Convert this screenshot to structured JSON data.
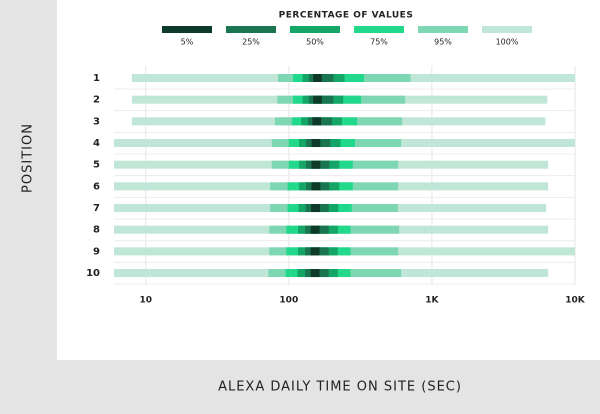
{
  "chart_data": {
    "type": "range-bar",
    "legend_title": "PERCENTAGE OF VALUES",
    "y_label": "POSITION",
    "x_label": "ALEXA DAILY TIME ON SITE (SEC)",
    "categories": [
      "1",
      "2",
      "3",
      "4",
      "5",
      "6",
      "7",
      "8",
      "9",
      "10"
    ],
    "xscale": "log",
    "xlim": [
      6,
      10000
    ],
    "xticks": [
      10,
      100,
      {
        "value": 1000,
        "label": "1K"
      },
      {
        "value": 10000,
        "label": "10K"
      }
    ],
    "grid": true,
    "series": [
      {
        "name": "100%",
        "color": "#bfe6d6",
        "low": [
          8,
          8,
          8,
          6,
          6,
          6,
          6,
          6,
          6,
          6
        ],
        "high": [
          10000,
          6400,
          6200,
          10000,
          6500,
          6500,
          6300,
          6500,
          10000,
          6500
        ]
      },
      {
        "name": "95%",
        "color": "#7fd6b2",
        "low": [
          84,
          83,
          80,
          76,
          76,
          74,
          74,
          73,
          73,
          72
        ],
        "high": [
          710,
          650,
          620,
          610,
          580,
          580,
          580,
          590,
          580,
          610
        ]
      },
      {
        "name": "75%",
        "color": "#22d88a",
        "low": [
          107,
          107,
          105,
          100,
          100,
          98,
          98,
          96,
          96,
          95
        ],
        "high": [
          335,
          320,
          300,
          290,
          280,
          280,
          275,
          270,
          270,
          270
        ]
      },
      {
        "name": "50%",
        "color": "#14a567",
        "low": [
          125,
          125,
          122,
          118,
          118,
          118,
          117,
          116,
          116,
          115
        ],
        "high": [
          245,
          240,
          235,
          230,
          225,
          225,
          222,
          220,
          220,
          220
        ]
      },
      {
        "name": "25%",
        "color": "#1a7650",
        "low": [
          138,
          138,
          136,
          132,
          132,
          132,
          131,
          130,
          130,
          130
        ],
        "high": [
          205,
          205,
          200,
          195,
          192,
          192,
          190,
          190,
          190,
          190
        ]
      },
      {
        "name": "5%",
        "color": "#0e3b29",
        "low": [
          148,
          148,
          146,
          144,
          144,
          144,
          143,
          142,
          142,
          142
        ],
        "high": [
          170,
          170,
          168,
          166,
          166,
          166,
          165,
          164,
          164,
          164
        ]
      }
    ]
  }
}
